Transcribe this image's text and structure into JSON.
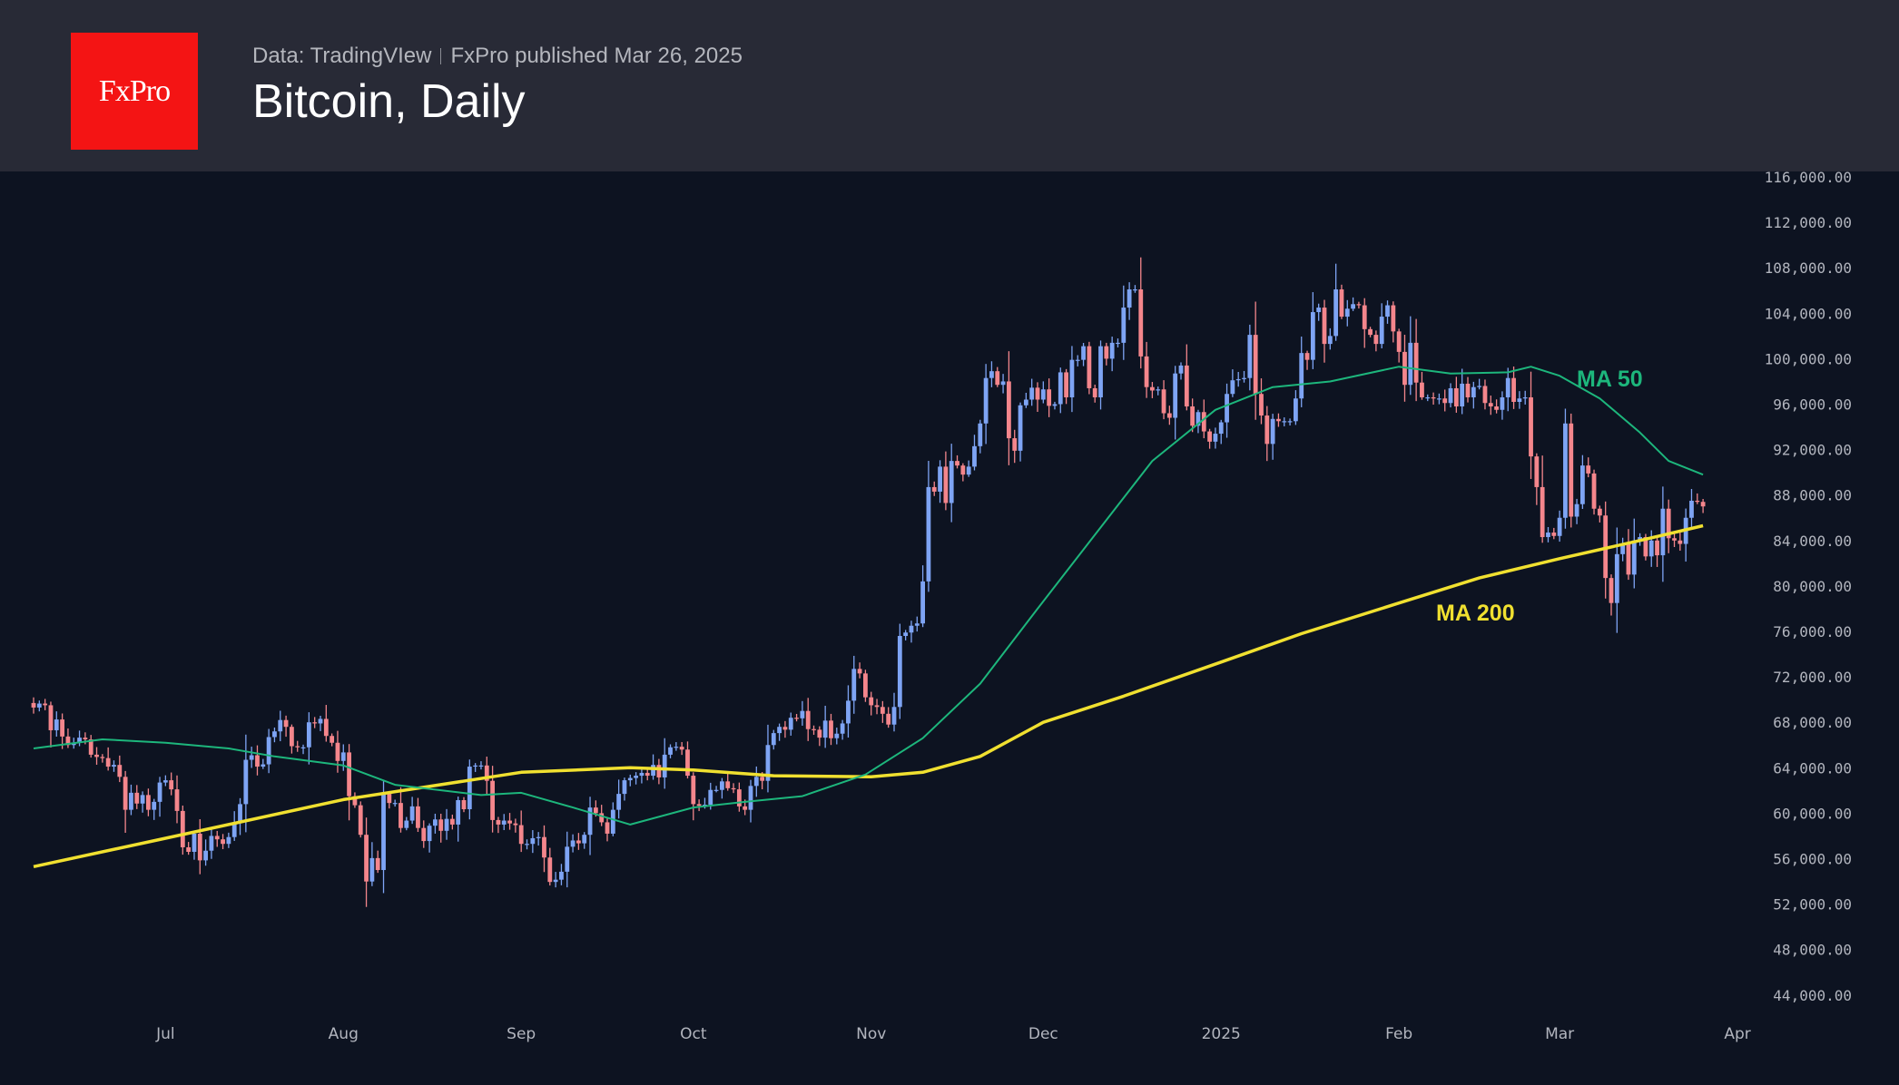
{
  "header": {
    "logo_text": "FxPro",
    "source": "Data: TradingVIew",
    "published": "FxPro published Mar 26, 2025",
    "title": "Bitcoin, Daily"
  },
  "colors": {
    "bull": "#7ea4f4",
    "bear": "#f4868c",
    "ma50": "#1db67c",
    "ma200": "#f0e030",
    "background": "#0d1321",
    "header": "#282a36"
  },
  "chart_data": {
    "type": "candlestick",
    "title": "Bitcoin, Daily",
    "start_date": "2024-06-08",
    "end_date": "2025-03-26",
    "ylim": [
      42000,
      118000
    ],
    "y_ticks": [
      "116,000.00",
      "112,000.00",
      "108,000.00",
      "104,000.00",
      "100,000.00",
      "96,000.00",
      "92,000.00",
      "88,000.00",
      "84,000.00",
      "80,000.00",
      "76,000.00",
      "72,000.00",
      "68,000.00",
      "64,000.00",
      "60,000.00",
      "56,000.00",
      "52,000.00",
      "48,000.00",
      "44,000.00"
    ],
    "x_ticks": [
      {
        "label": "Jul",
        "date": "2024-07-01"
      },
      {
        "label": "Aug",
        "date": "2024-08-01"
      },
      {
        "label": "Sep",
        "date": "2024-09-01"
      },
      {
        "label": "Oct",
        "date": "2024-10-01"
      },
      {
        "label": "Nov",
        "date": "2024-11-01"
      },
      {
        "label": "Dec",
        "date": "2024-12-01"
      },
      {
        "label": "2025",
        "date": "2025-01-01"
      },
      {
        "label": "Feb",
        "date": "2025-02-01"
      },
      {
        "label": "Mar",
        "date": "2025-03-01"
      },
      {
        "label": "Apr",
        "date": "2025-04-01"
      }
    ],
    "first_open": 69700,
    "daily_close": [
      69300,
      69650,
      69500,
      67300,
      68250,
      66750,
      66000,
      66200,
      66650,
      66500,
      65150,
      64950,
      64850,
      64100,
      64250,
      63200,
      60300,
      61800,
      60850,
      61600,
      60300,
      61000,
      62700,
      62900,
      62100,
      60200,
      57000,
      56600,
      58200,
      55850,
      56700,
      58000,
      57700,
      57300,
      57900,
      59200,
      60800,
      64700,
      65100,
      64100,
      64300,
      66700,
      67200,
      68200,
      67600,
      65900,
      65800,
      65800,
      68000,
      67900,
      68300,
      66800,
      66200,
      64600,
      65350,
      61500,
      60700,
      58100,
      53990,
      56050,
      55000,
      61700,
      60900,
      60900,
      58700,
      59350,
      60600,
      58700,
      57550,
      58900,
      59450,
      58450,
      59500,
      59000,
      61150,
      60350,
      64100,
      64200,
      64200,
      62850,
      59400,
      59000,
      59350,
      59100,
      58950,
      57300,
      57300,
      57800,
      57900,
      56100,
      53950,
      54150,
      54850,
      57050,
      57600,
      57350,
      58100,
      60500,
      60000,
      59200,
      58200,
      60300,
      61700,
      62900,
      63100,
      63300,
      63550,
      63300,
      64250,
      63150,
      65150,
      65800,
      65850,
      65600,
      63300,
      60800,
      60650,
      60750,
      62050,
      62050,
      62800,
      62200,
      62100,
      60600,
      60300,
      62400,
      63200,
      62850,
      66000,
      67050,
      67600,
      67350,
      68400,
      68350,
      69000,
      67400,
      67350,
      66650,
      68150,
      66600,
      67000,
      67900,
      69900,
      72700,
      72300,
      70200,
      69500,
      69350,
      68750,
      67800,
      69350,
      75600,
      75900,
      76500,
      76700,
      80400,
      88700,
      88300,
      90500,
      87300,
      91000,
      90600,
      89800,
      90500,
      92300,
      94300,
      98300,
      98900,
      97700,
      98000,
      93000,
      91900,
      95900,
      96400,
      97450,
      96400,
      97300,
      95850,
      96000,
      98800,
      96600,
      99900,
      99900,
      101100,
      97400,
      96600,
      101100,
      100000,
      101400,
      101400,
      104500,
      106100,
      106100,
      100200,
      97500,
      97200,
      97300,
      95200,
      94800,
      98700,
      99400,
      95800,
      94100,
      95300,
      93600,
      92700,
      93400,
      94400,
      96900,
      98100,
      98200,
      98300,
      102100,
      96900,
      95000,
      92500,
      94700,
      94500,
      94500,
      94500,
      96500,
      100500,
      99900,
      104100,
      104500,
      101300,
      102000,
      106100,
      103700,
      104400,
      104800,
      104700,
      102600,
      102100,
      101300,
      103700,
      104700,
      102400,
      100600,
      97700,
      101400,
      97900,
      96600,
      96600,
      96500,
      96500,
      96100,
      97400,
      95800,
      97800,
      96600,
      97500,
      97600,
      96100,
      95800,
      95500,
      96600,
      98300,
      96200,
      96500,
      96600,
      91400,
      88700,
      84300,
      84700,
      84400,
      86000,
      94300,
      86100,
      87200,
      90600,
      89900,
      86800,
      86200,
      80700,
      78500,
      82800,
      83700,
      81000,
      84000,
      84300,
      82600,
      84000,
      82700,
      86800,
      84200,
      84000,
      83700,
      86000,
      87500,
      87400,
      87000
    ],
    "series": [
      {
        "name": "MA 50",
        "label": "MA 50",
        "points": [
          [
            "2024-06-08",
            65700
          ],
          [
            "2024-06-20",
            66500
          ],
          [
            "2024-07-01",
            66200
          ],
          [
            "2024-07-12",
            65700
          ],
          [
            "2024-07-20",
            65000
          ],
          [
            "2024-08-01",
            64200
          ],
          [
            "2024-08-10",
            62500
          ],
          [
            "2024-08-25",
            61600
          ],
          [
            "2024-09-01",
            61800
          ],
          [
            "2024-09-10",
            60500
          ],
          [
            "2024-09-20",
            59000
          ],
          [
            "2024-10-01",
            60500
          ],
          [
            "2024-10-10",
            61000
          ],
          [
            "2024-10-20",
            61500
          ],
          [
            "2024-10-31",
            63400
          ],
          [
            "2024-11-10",
            66600
          ],
          [
            "2024-11-20",
            71400
          ],
          [
            "2024-11-30",
            78000
          ],
          [
            "2024-12-10",
            84500
          ],
          [
            "2024-12-20",
            91000
          ],
          [
            "2024-12-31",
            95500
          ],
          [
            "2025-01-10",
            97500
          ],
          [
            "2025-01-20",
            98000
          ],
          [
            "2025-02-01",
            99300
          ],
          [
            "2025-02-10",
            98700
          ],
          [
            "2025-02-20",
            98800
          ],
          [
            "2025-02-24",
            99300
          ],
          [
            "2025-03-01",
            98500
          ],
          [
            "2025-03-08",
            96500
          ],
          [
            "2025-03-15",
            93500
          ],
          [
            "2025-03-20",
            91000
          ],
          [
            "2025-03-26",
            89800
          ]
        ]
      },
      {
        "name": "MA 200",
        "label": "MA 200",
        "points": [
          [
            "2024-06-08",
            55300
          ],
          [
            "2024-07-01",
            57800
          ],
          [
            "2024-08-01",
            61200
          ],
          [
            "2024-09-01",
            63600
          ],
          [
            "2024-09-20",
            64000
          ],
          [
            "2024-10-01",
            63800
          ],
          [
            "2024-10-15",
            63300
          ],
          [
            "2024-11-01",
            63200
          ],
          [
            "2024-11-10",
            63600
          ],
          [
            "2024-11-20",
            65000
          ],
          [
            "2024-12-01",
            68000
          ],
          [
            "2024-12-15",
            70300
          ],
          [
            "2025-01-01",
            73300
          ],
          [
            "2025-01-15",
            75800
          ],
          [
            "2025-02-01",
            78500
          ],
          [
            "2025-02-15",
            80700
          ],
          [
            "2025-03-01",
            82400
          ],
          [
            "2025-03-15",
            84000
          ],
          [
            "2025-03-26",
            85300
          ]
        ]
      }
    ]
  }
}
